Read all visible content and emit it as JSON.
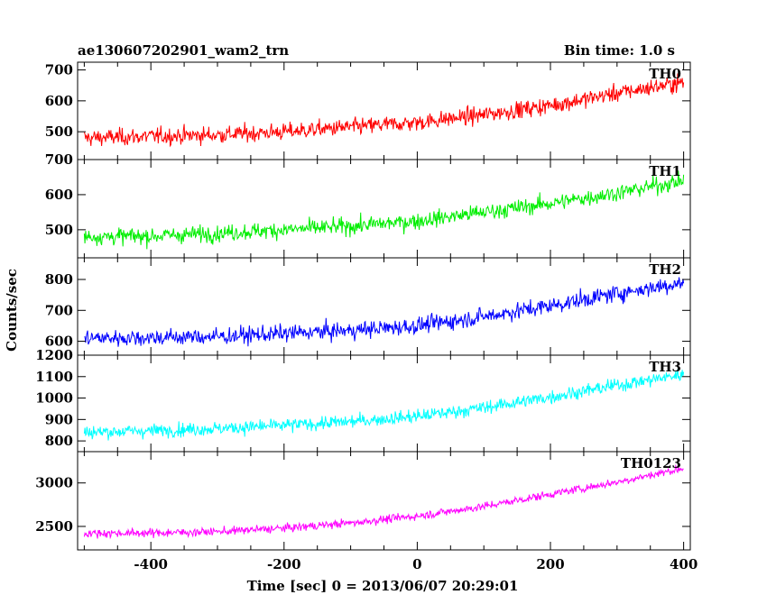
{
  "header": {
    "title": "ae130607202901_wam2_trn",
    "bin_time": "Bin time: 1.0 s"
  },
  "chart_data": {
    "type": "line",
    "xlabel": "Time [sec] 0 = 2013/06/07 20:29:01",
    "ylabel": "Counts/sec",
    "xlim": [
      -510,
      410
    ],
    "x_ticks": [
      -400,
      -200,
      0,
      200,
      400
    ],
    "panels": [
      {
        "name": "TH0",
        "color": "#ff0000",
        "ylim": [
          410,
          725
        ],
        "y_ticks": [
          500,
          600,
          700
        ],
        "x": [
          -500,
          -400,
          -300,
          -200,
          -100,
          0,
          100,
          200,
          300,
          400
        ],
        "y": [
          480,
          485,
          490,
          500,
          515,
          530,
          555,
          585,
          625,
          660
        ],
        "noise": 35
      },
      {
        "name": "TH1",
        "color": "#00ee00",
        "ylim": [
          420,
          700
        ],
        "y_ticks": [
          500,
          600,
          700
        ],
        "x": [
          -500,
          -400,
          -300,
          -200,
          -100,
          0,
          100,
          200,
          300,
          400
        ],
        "y": [
          480,
          482,
          490,
          500,
          510,
          525,
          550,
          575,
          605,
          640
        ],
        "noise": 30
      },
      {
        "name": "TH2",
        "color": "#0000ff",
        "ylim": [
          555,
          870
        ],
        "y_ticks": [
          600,
          700,
          800
        ],
        "x": [
          -500,
          -400,
          -300,
          -200,
          -100,
          0,
          100,
          200,
          300,
          400
        ],
        "y": [
          610,
          612,
          615,
          625,
          635,
          650,
          680,
          715,
          755,
          790
        ],
        "noise": 35
      },
      {
        "name": "TH3",
        "color": "#00ffff",
        "ylim": [
          750,
          1200
        ],
        "y_ticks": [
          800,
          900,
          1000,
          1100,
          1200
        ],
        "x": [
          -500,
          -400,
          -300,
          -200,
          -100,
          0,
          100,
          200,
          300,
          400
        ],
        "y": [
          840,
          848,
          858,
          872,
          890,
          915,
          955,
          1005,
          1060,
          1110
        ],
        "noise": 40
      },
      {
        "name": "TH0123",
        "color": "#ff00ff",
        "ylim": [
          2230,
          3360
        ],
        "y_ticks": [
          2500,
          3000
        ],
        "x": [
          -500,
          -400,
          -300,
          -200,
          -100,
          0,
          100,
          200,
          300,
          400
        ],
        "y": [
          2420,
          2425,
          2440,
          2480,
          2540,
          2620,
          2730,
          2870,
          3010,
          3170
        ],
        "noise": 60
      }
    ]
  }
}
